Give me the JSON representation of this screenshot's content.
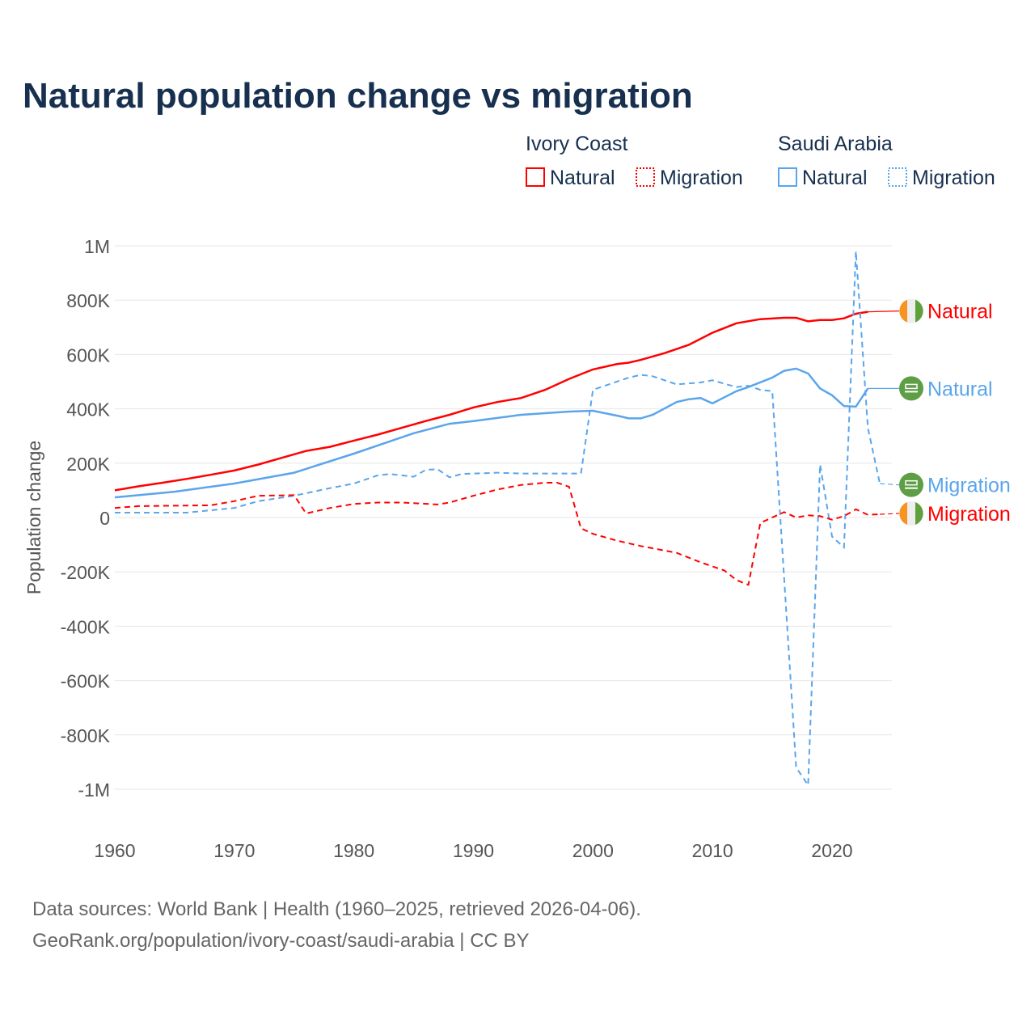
{
  "chart_data": {
    "type": "line",
    "title": "Natural population change vs migration",
    "ylabel": "Population change",
    "xlabel": "",
    "ylim": [
      -1000000,
      1000000
    ],
    "xlim": [
      1960,
      2025
    ],
    "yticks": [
      {
        "v": 1000000,
        "label": "1M"
      },
      {
        "v": 800000,
        "label": "800K"
      },
      {
        "v": 600000,
        "label": "600K"
      },
      {
        "v": 400000,
        "label": "400K"
      },
      {
        "v": 200000,
        "label": "200K"
      },
      {
        "v": 0,
        "label": "0"
      },
      {
        "v": -200000,
        "label": "-200K"
      },
      {
        "v": -400000,
        "label": "-400K"
      },
      {
        "v": -600000,
        "label": "-600K"
      },
      {
        "v": -800000,
        "label": "-800K"
      },
      {
        "v": -1000000,
        "label": "-1M"
      }
    ],
    "xticks": [
      1960,
      1970,
      1980,
      1990,
      2000,
      2010,
      2020
    ],
    "grid": true,
    "legend": {
      "placement": "top-right",
      "groups": [
        {
          "name": "Ivory Coast",
          "items": [
            "Natural",
            "Migration"
          ]
        },
        {
          "name": "Saudi Arabia",
          "items": [
            "Natural",
            "Migration"
          ]
        }
      ]
    },
    "series": [
      {
        "name": "Ivory Coast Natural",
        "label": "Natural",
        "color": "#ff0000",
        "dashed": false,
        "flag": "ivory-coast",
        "x": [
          1960,
          1962,
          1964,
          1966,
          1968,
          1970,
          1972,
          1974,
          1976,
          1978,
          1980,
          1982,
          1984,
          1986,
          1988,
          1990,
          1992,
          1994,
          1996,
          1998,
          2000,
          2002,
          2003,
          2004,
          2006,
          2008,
          2010,
          2012,
          2014,
          2016,
          2017,
          2018,
          2019,
          2020,
          2021,
          2022,
          2023
        ],
        "y": [
          100000,
          115000,
          128000,
          142000,
          157000,
          173000,
          195000,
          220000,
          245000,
          260000,
          283000,
          305000,
          330000,
          355000,
          378000,
          405000,
          425000,
          440000,
          470000,
          510000,
          545000,
          565000,
          570000,
          580000,
          605000,
          635000,
          680000,
          715000,
          730000,
          735000,
          735000,
          722000,
          727000,
          727000,
          733000,
          750000,
          757000
        ]
      },
      {
        "name": "Saudi Arabia Natural",
        "label": "Natural",
        "color": "#5aa5eb",
        "dashed": false,
        "flag": "saudi-arabia",
        "x": [
          1960,
          1965,
          1970,
          1975,
          1980,
          1985,
          1988,
          1990,
          1994,
          1998,
          2000,
          2002,
          2003,
          2004,
          2005,
          2007,
          2008,
          2009,
          2010,
          2012,
          2013,
          2015,
          2016,
          2017,
          2018,
          2019,
          2020,
          2021,
          2022,
          2023
        ],
        "y": [
          74000,
          95000,
          125000,
          165000,
          235000,
          310000,
          345000,
          355000,
          378000,
          390000,
          393000,
          375000,
          365000,
          365000,
          378000,
          425000,
          435000,
          440000,
          420000,
          465000,
          480000,
          515000,
          540000,
          548000,
          530000,
          475000,
          450000,
          410000,
          408000,
          475000
        ]
      },
      {
        "name": "Saudi Arabia Migration",
        "label": "Migration",
        "color": "#5aa5eb",
        "dashed": true,
        "flag": "saudi-arabia",
        "x": [
          1960,
          1966,
          1970,
          1972,
          1975,
          1978,
          1980,
          1982,
          1983,
          1985,
          1986,
          1987,
          1988,
          1989,
          1992,
          1994,
          1999,
          2000,
          2002,
          2003,
          2004,
          2005,
          2007,
          2009,
          2010,
          2012,
          2013,
          2014,
          2015,
          2017,
          2018,
          2019,
          2020,
          2021,
          2022,
          2023,
          2024
        ],
        "y": [
          18000,
          18000,
          35000,
          60000,
          80000,
          108000,
          125000,
          155000,
          160000,
          150000,
          175000,
          178000,
          148000,
          160000,
          165000,
          162000,
          162000,
          470000,
          500000,
          515000,
          525000,
          520000,
          490000,
          497000,
          505000,
          480000,
          485000,
          470000,
          465000,
          -920000,
          -985000,
          195000,
          -70000,
          -110000,
          980000,
          330000,
          125000
        ]
      },
      {
        "name": "Ivory Coast Migration",
        "label": "Migration",
        "color": "#ff0000",
        "dashed": true,
        "flag": "ivory-coast",
        "x": [
          1960,
          1962,
          1968,
          1970,
          1972,
          1975,
          1976,
          1978,
          1980,
          1982,
          1984,
          1987,
          1988,
          1990,
          1992,
          1994,
          1996,
          1997,
          1998,
          1999,
          2000,
          2002,
          2004,
          2007,
          2009,
          2011,
          2012,
          2013,
          2014,
          2016,
          2017,
          2018,
          2019,
          2020,
          2021,
          2022,
          2023,
          2024
        ],
        "y": [
          35000,
          42000,
          45000,
          60000,
          80000,
          82000,
          15000,
          35000,
          50000,
          55000,
          55000,
          48000,
          55000,
          80000,
          103000,
          120000,
          128000,
          128000,
          113000,
          -40000,
          -60000,
          -85000,
          -105000,
          -130000,
          -165000,
          -195000,
          -230000,
          -248000,
          -20000,
          20000,
          0,
          8000,
          5000,
          -8000,
          5000,
          30000,
          10000,
          12000
        ]
      }
    ],
    "labels_end": [
      {
        "text": "Natural",
        "series": 0,
        "labelValue": 760000
      },
      {
        "text": "Natural",
        "series": 1,
        "labelValue": 475000
      },
      {
        "text": "Migration",
        "series": 2,
        "labelValue": 120000
      },
      {
        "text": "Migration",
        "series": 3,
        "labelValue": 15000
      }
    ]
  },
  "footer": {
    "line1": "Data sources: World Bank | Health (1960–2025, retrieved 2026-04-06).",
    "line2": "GeoRank.org/population/ivory-coast/saudi-arabia | CC BY"
  }
}
